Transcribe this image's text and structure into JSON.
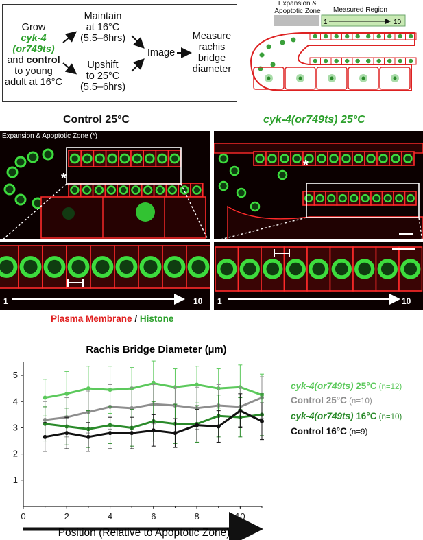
{
  "flowchart": {
    "grow": [
      "Grow",
      "cyk-4",
      "(or749ts)",
      "and",
      "control",
      "to young",
      "adult at 16°C"
    ],
    "maintain": [
      "Maintain",
      "at 16°C",
      "(5.5–6hrs)"
    ],
    "upshift": [
      "Upshift",
      "to 25°C",
      "(5.5–6hrs)"
    ],
    "image": "Image",
    "measure": [
      "Measure",
      "rachis",
      "bridge",
      "diameter"
    ]
  },
  "schematic": {
    "zone_label": [
      "Expansion &",
      "Apoptotic Zone"
    ],
    "measured_label": "Measured Region",
    "range_start": "1",
    "range_end": "10"
  },
  "panels": {
    "left_title": "Control 25°C",
    "right_title": "cyk-4(or749ts) 25°C",
    "zone_annotation": "Expansion & Apoptotic Zone (",
    "zone_annotation_star": "*",
    "zone_annotation_close": ")",
    "star": "*",
    "axis_start": "1",
    "axis_end": "10"
  },
  "legend_stain": {
    "membrane": "Plasma Membrane",
    "sep": " / ",
    "histone": "Histone"
  },
  "chart_data": {
    "type": "line",
    "title": "Rachis Bridge Diameter (µm)",
    "xlabel": "Position (Relative to Apoptotic Zone)",
    "ylabel": "",
    "xlim": [
      0,
      11
    ],
    "ylim": [
      0,
      5.5
    ],
    "xticks": [
      0,
      2,
      4,
      6,
      8,
      10
    ],
    "yticks": [
      1,
      2,
      3,
      4,
      5
    ],
    "x": [
      1,
      2,
      3,
      4,
      5,
      6,
      7,
      8,
      9,
      10,
      11
    ],
    "series": [
      {
        "name": "cyk-4(or749ts) 25°C",
        "n": "(n=12)",
        "color": "#5cc95c",
        "italic_part": "cyk-4(or749ts)",
        "rest": " 25°C",
        "values": [
          4.15,
          4.3,
          4.5,
          4.45,
          4.5,
          4.7,
          4.55,
          4.65,
          4.5,
          4.55,
          4.25
        ],
        "err": [
          0.7,
          0.85,
          0.85,
          0.9,
          0.8,
          0.85,
          0.7,
          0.7,
          0.75,
          0.85,
          0.8
        ]
      },
      {
        "name": "Control 25°C",
        "n": "(n=10)",
        "color": "#8e8e8e",
        "italic_part": "",
        "rest": "Control 25°C",
        "values": [
          3.3,
          3.4,
          3.6,
          3.8,
          3.75,
          3.9,
          3.85,
          3.75,
          3.85,
          3.8,
          4.15
        ],
        "err": [
          0.7,
          0.75,
          0.8,
          0.85,
          0.8,
          0.75,
          0.7,
          0.8,
          0.8,
          0.75,
          0.8
        ]
      },
      {
        "name": "cyk-4(or749ts) 16°C",
        "n": "(n=10)",
        "color": "#2a8a2a",
        "italic_part": "cyk-4(or749ts)",
        "rest": " 16°C",
        "values": [
          3.15,
          3.05,
          2.95,
          3.1,
          3.0,
          3.25,
          3.15,
          3.15,
          3.45,
          3.4,
          3.5
        ],
        "err": [
          0.65,
          0.7,
          0.7,
          0.7,
          0.7,
          0.75,
          0.75,
          0.7,
          0.8,
          0.75,
          0.8
        ]
      },
      {
        "name": "Control 16°C",
        "n": "(n=9)",
        "color": "#111111",
        "italic_part": "",
        "rest": "Control 16°C",
        "values": [
          2.65,
          2.8,
          2.65,
          2.8,
          2.8,
          2.9,
          2.8,
          3.1,
          3.05,
          3.65,
          3.25
        ],
        "err": [
          0.55,
          0.6,
          0.55,
          0.6,
          0.6,
          0.6,
          0.55,
          0.6,
          0.6,
          0.65,
          0.7
        ]
      }
    ]
  }
}
